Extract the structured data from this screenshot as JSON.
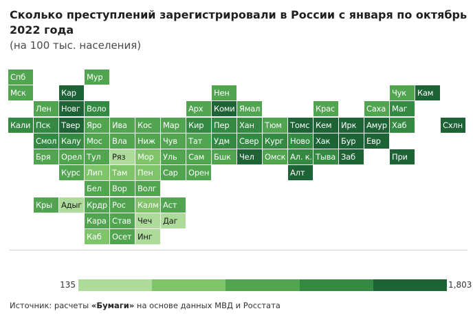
{
  "title": "Сколько преступлений зарегистрировали в России с января по октябрь 2022 года",
  "subtitle": "(на 100 тыс. населения)",
  "chart_data": {
    "type": "heatmap",
    "title": "Сколько преступлений зарегистрировали в России с января по октябрь 2022 года",
    "subtitle": "(на 100 тыс. населения)",
    "value_scale": {
      "min": 135,
      "max": 1803,
      "bins": 5
    },
    "legend": {
      "min_label": "135",
      "max_label": "1,803"
    },
    "colors": [
      "#addb9a",
      "#7fc36a",
      "#52a550",
      "#348a43",
      "#1d6335"
    ],
    "grid": {
      "columns": 18,
      "rows": 11
    },
    "cells": [
      {
        "label": "Спб",
        "col": 0,
        "row": 0,
        "bin": 2
      },
      {
        "label": "Мур",
        "col": 3,
        "row": 0,
        "bin": 2
      },
      {
        "label": "Мск",
        "col": 0,
        "row": 1,
        "bin": 2
      },
      {
        "label": "Кар",
        "col": 2,
        "row": 1,
        "bin": 4
      },
      {
        "label": "Нен",
        "col": 8,
        "row": 1,
        "bin": 2
      },
      {
        "label": "Чук",
        "col": 15,
        "row": 1,
        "bin": 2
      },
      {
        "label": "Кам",
        "col": 16,
        "row": 1,
        "bin": 4
      },
      {
        "label": "Лен",
        "col": 1,
        "row": 2,
        "bin": 2
      },
      {
        "label": "Новг",
        "col": 2,
        "row": 2,
        "bin": 4
      },
      {
        "label": "Воло",
        "col": 3,
        "row": 2,
        "bin": 3
      },
      {
        "label": "Арх",
        "col": 7,
        "row": 2,
        "bin": 2
      },
      {
        "label": "Коми",
        "col": 8,
        "row": 2,
        "bin": 4
      },
      {
        "label": "Ямал",
        "col": 9,
        "row": 2,
        "bin": 2
      },
      {
        "label": "Крас",
        "col": 12,
        "row": 2,
        "bin": 2
      },
      {
        "label": "Саха",
        "col": 14,
        "row": 2,
        "bin": 2
      },
      {
        "label": "Маг",
        "col": 15,
        "row": 2,
        "bin": 3
      },
      {
        "label": "Кали",
        "col": 0,
        "row": 3,
        "bin": 3
      },
      {
        "label": "Пск",
        "col": 1,
        "row": 3,
        "bin": 3
      },
      {
        "label": "Твер",
        "col": 2,
        "row": 3,
        "bin": 4
      },
      {
        "label": "Яро",
        "col": 3,
        "row": 3,
        "bin": 2
      },
      {
        "label": "Ива",
        "col": 4,
        "row": 3,
        "bin": 2
      },
      {
        "label": "Кос",
        "col": 5,
        "row": 3,
        "bin": 2
      },
      {
        "label": "Мар",
        "col": 6,
        "row": 3,
        "bin": 2
      },
      {
        "label": "Кир",
        "col": 7,
        "row": 3,
        "bin": 3
      },
      {
        "label": "Пер",
        "col": 8,
        "row": 3,
        "bin": 3
      },
      {
        "label": "Хан",
        "col": 9,
        "row": 3,
        "bin": 3
      },
      {
        "label": "Тюм",
        "col": 10,
        "row": 3,
        "bin": 2
      },
      {
        "label": "Томс",
        "col": 11,
        "row": 3,
        "bin": 4
      },
      {
        "label": "Кем",
        "col": 12,
        "row": 3,
        "bin": 4
      },
      {
        "label": "Ирк",
        "col": 13,
        "row": 3,
        "bin": 4
      },
      {
        "label": "Амур",
        "col": 14,
        "row": 3,
        "bin": 4
      },
      {
        "label": "Хаб",
        "col": 15,
        "row": 3,
        "bin": 3
      },
      {
        "label": "Схлн",
        "col": 17,
        "row": 3,
        "bin": 4
      },
      {
        "label": "Смол",
        "col": 1,
        "row": 4,
        "bin": 3
      },
      {
        "label": "Калу",
        "col": 2,
        "row": 4,
        "bin": 3
      },
      {
        "label": "Мос",
        "col": 3,
        "row": 4,
        "bin": 2
      },
      {
        "label": "Вла",
        "col": 4,
        "row": 4,
        "bin": 2
      },
      {
        "label": "Ниж",
        "col": 5,
        "row": 4,
        "bin": 2
      },
      {
        "label": "Чув",
        "col": 6,
        "row": 4,
        "bin": 2
      },
      {
        "label": "Тат",
        "col": 7,
        "row": 4,
        "bin": 2
      },
      {
        "label": "Удм",
        "col": 8,
        "row": 4,
        "bin": 3
      },
      {
        "label": "Свер",
        "col": 9,
        "row": 4,
        "bin": 3
      },
      {
        "label": "Кург",
        "col": 10,
        "row": 4,
        "bin": 3
      },
      {
        "label": "Ново",
        "col": 11,
        "row": 4,
        "bin": 3
      },
      {
        "label": "Хак",
        "col": 12,
        "row": 4,
        "bin": 4
      },
      {
        "label": "Бур",
        "col": 13,
        "row": 4,
        "bin": 4
      },
      {
        "label": "Евр",
        "col": 14,
        "row": 4,
        "bin": 4
      },
      {
        "label": "Бря",
        "col": 1,
        "row": 5,
        "bin": 2
      },
      {
        "label": "Орел",
        "col": 2,
        "row": 5,
        "bin": 2
      },
      {
        "label": "Тул",
        "col": 3,
        "row": 5,
        "bin": 2
      },
      {
        "label": "Ряз",
        "col": 4,
        "row": 5,
        "bin": 0
      },
      {
        "label": "Мор",
        "col": 5,
        "row": 5,
        "bin": 1
      },
      {
        "label": "Уль",
        "col": 6,
        "row": 5,
        "bin": 2
      },
      {
        "label": "Сам",
        "col": 7,
        "row": 5,
        "bin": 2
      },
      {
        "label": "Бшк",
        "col": 8,
        "row": 5,
        "bin": 2
      },
      {
        "label": "Чел",
        "col": 9,
        "row": 5,
        "bin": 4
      },
      {
        "label": "Омск",
        "col": 10,
        "row": 5,
        "bin": 2
      },
      {
        "label": "Ал. к.",
        "col": 11,
        "row": 5,
        "bin": 3
      },
      {
        "label": "Тыва",
        "col": 12,
        "row": 5,
        "bin": 3
      },
      {
        "label": "Заб",
        "col": 13,
        "row": 5,
        "bin": 4
      },
      {
        "label": "При",
        "col": 15,
        "row": 5,
        "bin": 4
      },
      {
        "label": "Курс",
        "col": 2,
        "row": 6,
        "bin": 2
      },
      {
        "label": "Лип",
        "col": 3,
        "row": 6,
        "bin": 1
      },
      {
        "label": "Там",
        "col": 4,
        "row": 6,
        "bin": 1
      },
      {
        "label": "Пен",
        "col": 5,
        "row": 6,
        "bin": 1
      },
      {
        "label": "Сар",
        "col": 6,
        "row": 6,
        "bin": 2
      },
      {
        "label": "Орен",
        "col": 7,
        "row": 6,
        "bin": 2
      },
      {
        "label": "Алт",
        "col": 11,
        "row": 6,
        "bin": 4
      },
      {
        "label": "Бел",
        "col": 3,
        "row": 7,
        "bin": 2
      },
      {
        "label": "Вор",
        "col": 4,
        "row": 7,
        "bin": 2
      },
      {
        "label": "Волг",
        "col": 5,
        "row": 7,
        "bin": 2
      },
      {
        "label": "Кры",
        "col": 1,
        "row": 8,
        "bin": 2
      },
      {
        "label": "Адыг",
        "col": 2,
        "row": 8,
        "bin": 0
      },
      {
        "label": "Крдр",
        "col": 3,
        "row": 8,
        "bin": 2
      },
      {
        "label": "Рос",
        "col": 4,
        "row": 8,
        "bin": 2
      },
      {
        "label": "Калм",
        "col": 5,
        "row": 8,
        "bin": 1
      },
      {
        "label": "Аст",
        "col": 6,
        "row": 8,
        "bin": 2
      },
      {
        "label": "Кара",
        "col": 3,
        "row": 9,
        "bin": 2
      },
      {
        "label": "Став",
        "col": 4,
        "row": 9,
        "bin": 2
      },
      {
        "label": "Чеч",
        "col": 5,
        "row": 9,
        "bin": 0
      },
      {
        "label": "Даг",
        "col": 6,
        "row": 9,
        "bin": 0
      },
      {
        "label": "Каб",
        "col": 3,
        "row": 10,
        "bin": 1
      },
      {
        "label": "Осет",
        "col": 4,
        "row": 10,
        "bin": 2
      },
      {
        "label": "Инг",
        "col": 5,
        "row": 10,
        "bin": 0
      }
    ]
  },
  "source": {
    "prefix": "Источник: расчеты ",
    "brand": "«Бумаги»",
    "suffix": " на основе данных МВД и Росстата"
  }
}
